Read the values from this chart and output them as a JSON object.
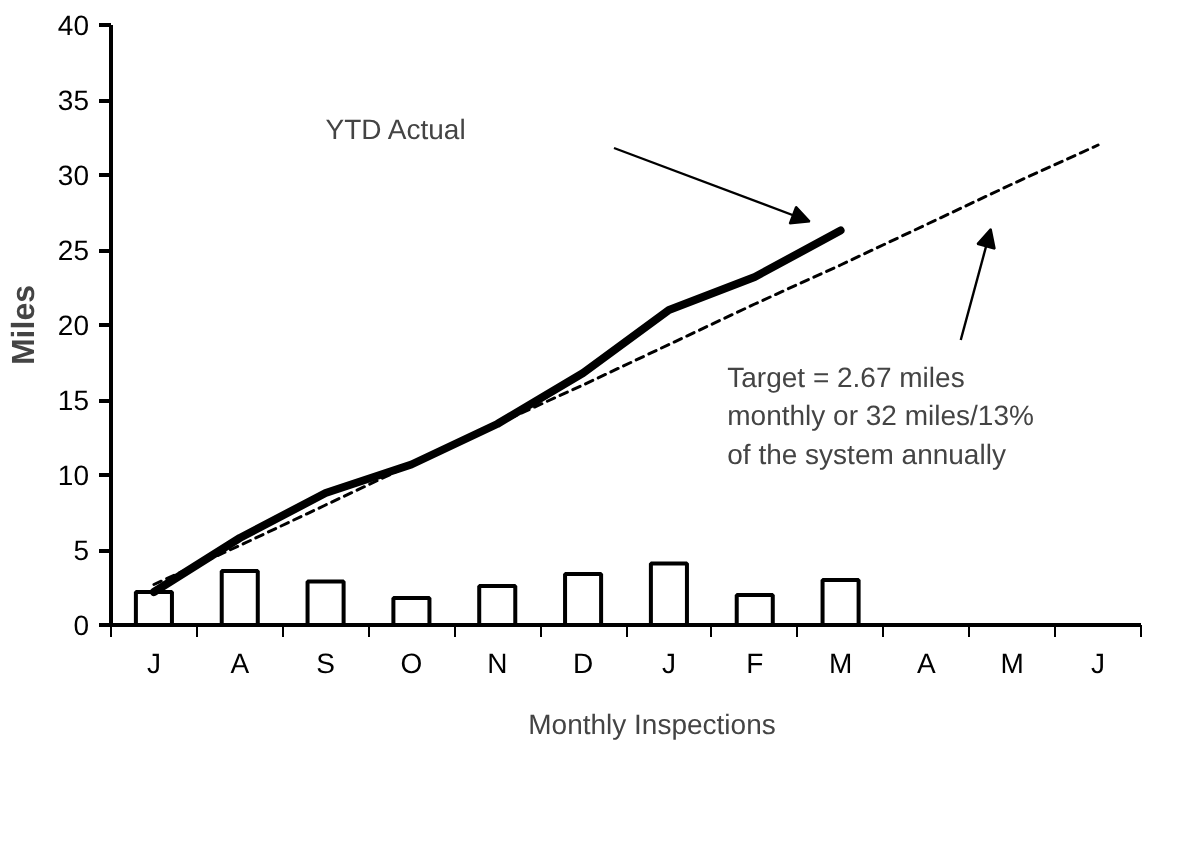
{
  "chart_data": {
    "type": "bar",
    "categories": [
      "J",
      "A",
      "S",
      "O",
      "N",
      "D",
      "J",
      "F",
      "M",
      "A",
      "M",
      "J"
    ],
    "ylabel": "Miles",
    "ylim": [
      0,
      40
    ],
    "yticks": [
      0,
      5,
      10,
      15,
      20,
      25,
      30,
      35,
      40
    ],
    "grid": false,
    "legend": "bottom",
    "series": [
      {
        "name": "Monthly Inspections",
        "color": "#ffffff",
        "values": [
          2.2,
          3.6,
          2.9,
          1.8,
          2.6,
          3.4,
          4.1,
          2.0,
          3.0,
          null,
          null,
          null
        ]
      },
      {
        "type": "line",
        "color": "#000000",
        "line_style": "solid",
        "values": [
          2.2,
          5.8,
          8.8,
          10.7,
          13.4,
          16.8,
          21.0,
          23.2,
          26.3,
          null,
          null,
          null
        ]
      },
      {
        "type": "line",
        "color": "#000000",
        "line_style": "dashed",
        "values": [
          2.7,
          5.3,
          8.0,
          10.7,
          13.4,
          16.0,
          18.7,
          21.4,
          24.0,
          26.7,
          29.4,
          32.0
        ]
      }
    ],
    "annotations": [
      "YTD Actual",
      "Target = 2.67 miles monthly or 32 miles/13% of the system annually"
    ]
  }
}
